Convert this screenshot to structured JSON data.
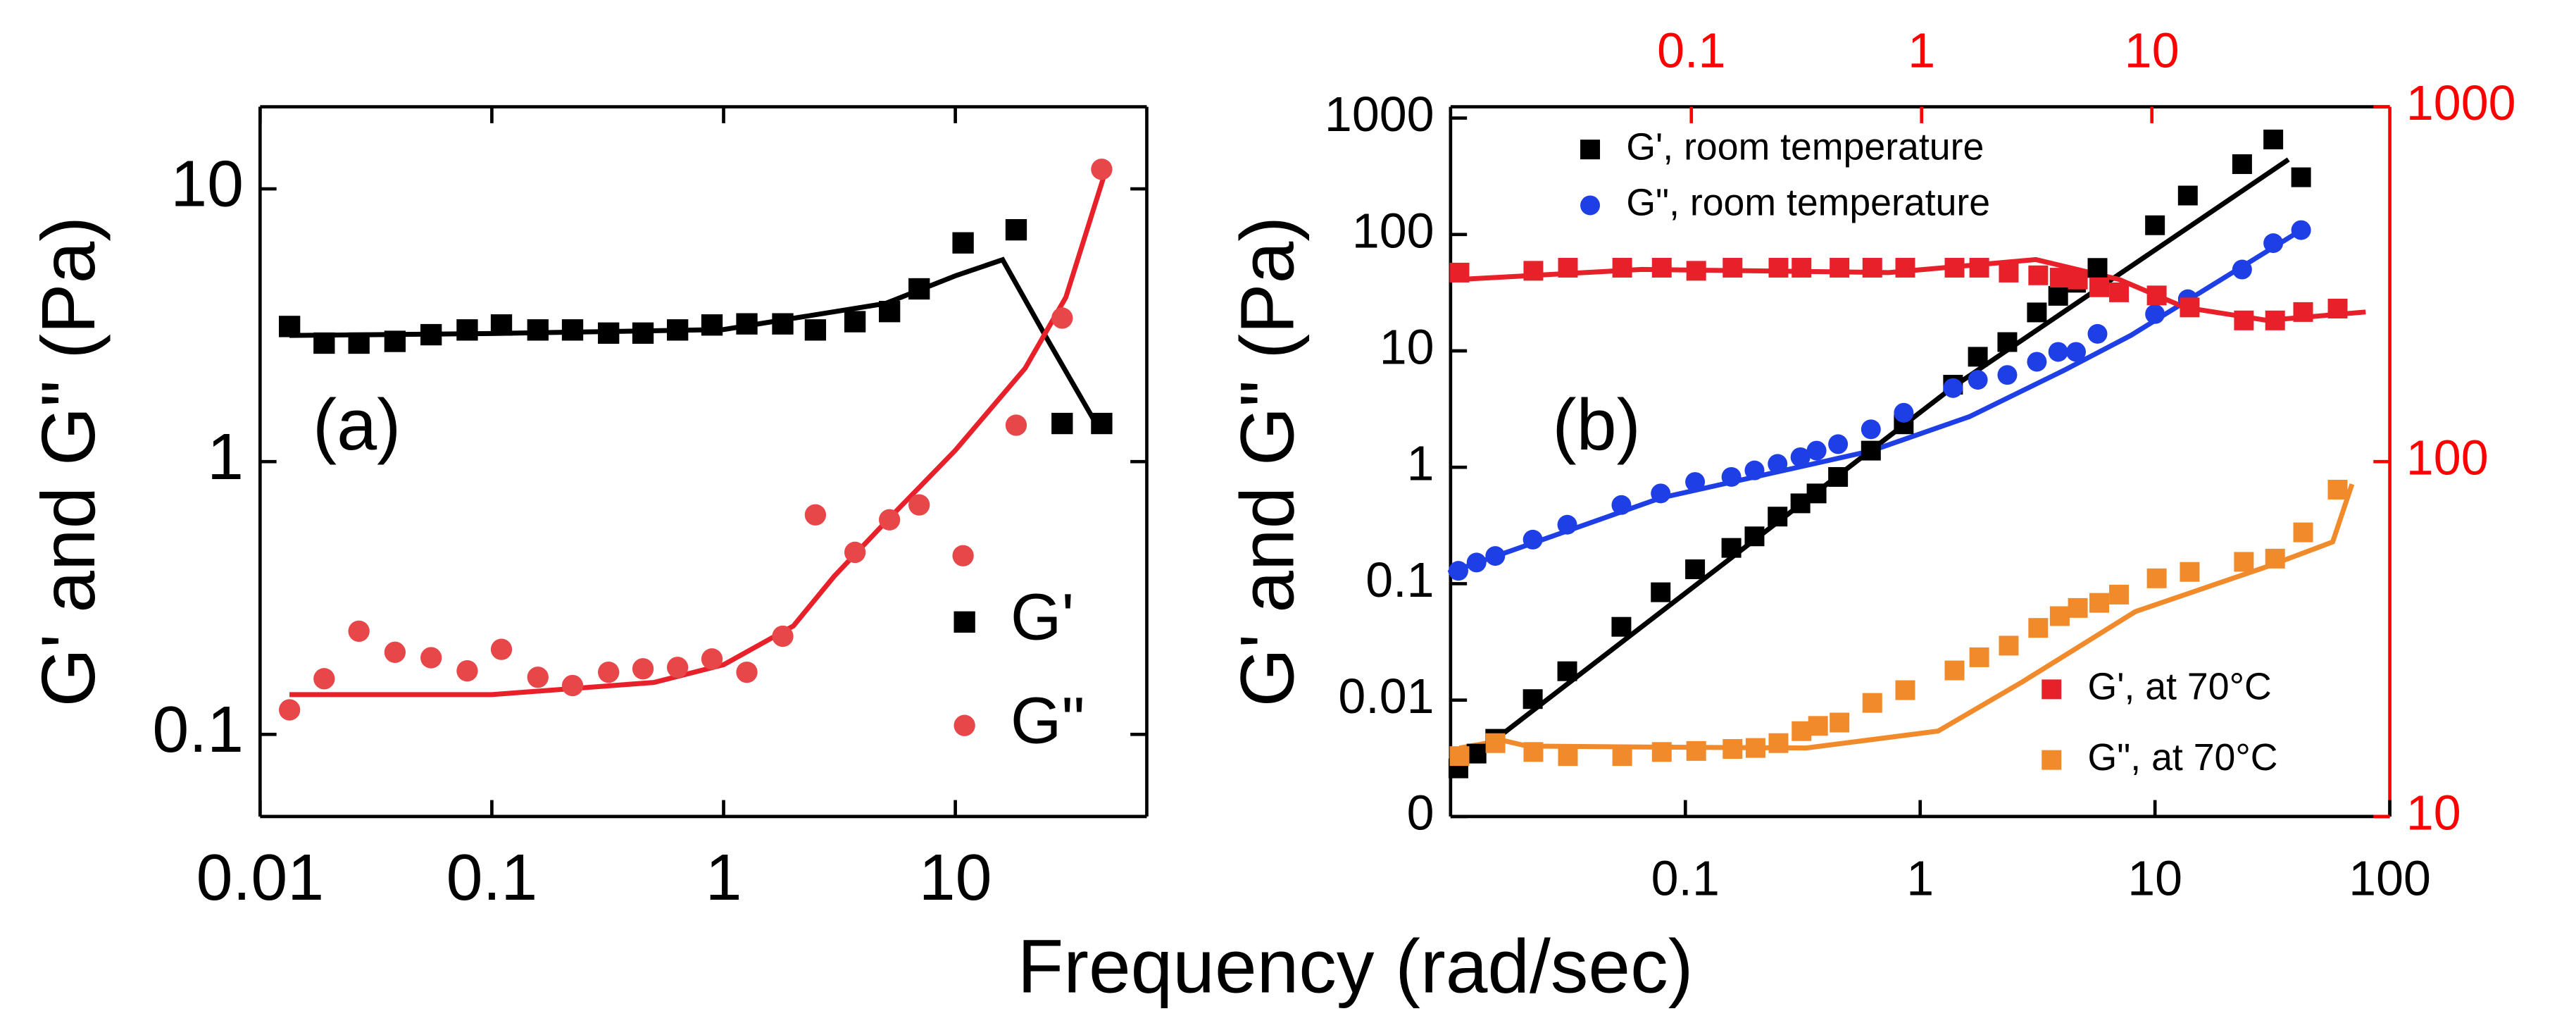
{
  "chart_data": [
    {
      "type": "scatter",
      "log_x": true,
      "log_y": true,
      "xlim": [
        0.01,
        67
      ],
      "xticks": [
        0.01,
        0.1,
        1,
        10
      ],
      "ylim": [
        0.05,
        20
      ],
      "yticks": [
        0.1,
        1,
        10
      ],
      "ylabel": "G' and G\" (Pa)",
      "xlabel": "Frequency (rad/sec)",
      "annotation": "(a)",
      "legend": "lower right",
      "x": [
        0.0134,
        0.0189,
        0.0267,
        0.0382,
        0.0547,
        0.0783,
        0.11,
        0.158,
        0.223,
        0.319,
        0.449,
        0.633,
        0.891,
        1.26,
        1.8,
        2.49,
        3.69,
        5.2,
        6.98,
        10.8,
        18.3,
        28.9,
        42.8
      ],
      "series": [
        {
          "name": "G'",
          "color": "#000000",
          "marker": "square",
          "values": [
            3.13,
            2.72,
            2.72,
            2.76,
            2.92,
            3.04,
            3.17,
            3.04,
            3.04,
            2.96,
            2.96,
            3.04,
            3.17,
            3.2,
            3.2,
            3.04,
            3.26,
            3.55,
            4.3,
            6.34,
            7.08,
            1.38,
            1.38
          ]
        },
        {
          "name": "G\"",
          "color": "#e8474a",
          "marker": "circle",
          "values": [
            0.123,
            0.16,
            0.239,
            0.2,
            0.191,
            0.171,
            0.205,
            0.162,
            0.151,
            0.169,
            0.174,
            0.176,
            0.189,
            0.169,
            0.229,
            0.638,
            0.465,
            0.612,
            0.694,
            0.452,
            1.36,
            3.36,
            11.8
          ]
        }
      ],
      "fits": [
        {
          "color": "#000000",
          "x": [
            0.0134,
            0.1,
            1,
            5,
            10,
            16,
            25,
            40
          ],
          "values": [
            2.9,
            2.95,
            3.05,
            3.8,
            4.8,
            5.5,
            2.8,
            1.4
          ]
        },
        {
          "color": "#e8202a",
          "x": [
            0.0134,
            0.1,
            0.5,
            1,
            2,
            3,
            5,
            10,
            20,
            30,
            45
          ],
          "values": [
            0.14,
            0.14,
            0.155,
            0.18,
            0.25,
            0.38,
            0.6,
            1.1,
            2.2,
            4,
            12
          ]
        }
      ]
    },
    {
      "type": "scatter",
      "log_x": true,
      "log_y": true,
      "xlim": [
        0.01,
        100
      ],
      "xticks": [
        0.1,
        1,
        10,
        100
      ],
      "ylim": [
        0.001,
        1250
      ],
      "yticks": [
        {
          "value": 0.001,
          "label": "0"
        },
        0.01,
        0.1,
        1,
        10,
        100,
        1000
      ],
      "x2lim": [
        0.009,
        108
      ],
      "x2ticks": [
        0.1,
        1,
        10
      ],
      "y2lim": [
        10,
        1000
      ],
      "y2ticks": [
        10,
        100,
        1000
      ],
      "axis2_color": "#ff0000",
      "ylabel": "G' and G\" (Pa)",
      "annotation": "(b)",
      "legend": "upper left",
      "legend2": "lower right",
      "series": [
        {
          "name": "G', room temperature",
          "color": "#000000",
          "marker": "square",
          "x": [
            0.0108,
            0.0129,
            0.0155,
            0.0224,
            0.0314,
            0.0534,
            0.0785,
            0.11,
            0.157,
            0.197,
            0.247,
            0.309,
            0.362,
            0.447,
            0.617,
            0.851,
            1.38,
            1.76,
            2.35,
            3.14,
            3.87,
            4.61,
            5.69,
            10,
            13.8,
            23.5,
            31.9,
            41.9
          ],
          "values": [
            0.00259,
            0.00347,
            0.00465,
            0.0102,
            0.0177,
            0.0426,
            0.0844,
            0.133,
            0.203,
            0.255,
            0.377,
            0.49,
            0.596,
            0.826,
            1.39,
            2.34,
            5.12,
            8.9,
            11.9,
            21.4,
            29.7,
            38.5,
            51.6,
            120,
            216,
            402,
            655,
            310
          ]
        },
        {
          "name": "G\", room temperature",
          "color": "#1f3fe6",
          "marker": "circle",
          "x": [
            0.0108,
            0.0129,
            0.0155,
            0.0224,
            0.0314,
            0.0534,
            0.0785,
            0.11,
            0.157,
            0.197,
            0.247,
            0.309,
            0.362,
            0.447,
            0.617,
            0.851,
            1.38,
            1.76,
            2.35,
            3.14,
            3.87,
            4.61,
            5.69,
            10,
            13.8,
            23.5,
            31.9,
            41.9
          ],
          "values": [
            0.129,
            0.152,
            0.173,
            0.239,
            0.321,
            0.474,
            0.596,
            0.748,
            0.826,
            0.94,
            1.07,
            1.22,
            1.39,
            1.58,
            2.12,
            2.94,
            4.79,
            5.64,
            6.21,
            8.06,
            9.8,
            9.8,
            14.0,
            20.7,
            27.8,
            50.0,
            84.2,
            109
          ]
        },
        {
          "name": "G', at 70°C",
          "color": "#e8202a",
          "marker": "square",
          "axis": "y2",
          "x": [
            0.00984,
            0.0206,
            0.0291,
            0.0501,
            0.0744,
            0.105,
            0.151,
            0.239,
            0.301,
            0.44,
            0.611,
            0.849,
            1.39,
            1.78,
            2.39,
            3.21,
            3.98,
            4.77,
            5.91,
            7.2,
            10.5,
            14.6,
            25.1,
            34.3,
            45.4,
            64.1
          ],
          "values": [
            341,
            345,
            352,
            352,
            352,
            345,
            352,
            352,
            352,
            352,
            352,
            352,
            352,
            352,
            341,
            335,
            330,
            326,
            310,
            300,
            294,
            272,
            250,
            250,
            264,
            270
          ]
        },
        {
          "name": "G\", at 70°C",
          "color": "#f08a2a",
          "marker": "square",
          "axis": "y2",
          "x": [
            0.00984,
            0.0141,
            0.0206,
            0.0291,
            0.0501,
            0.0744,
            0.105,
            0.151,
            0.19,
            0.239,
            0.301,
            0.355,
            0.44,
            0.611,
            0.849,
            1.39,
            1.78,
            2.39,
            3.21,
            3.98,
            4.77,
            5.91,
            7.2,
            10.5,
            14.6,
            25.1,
            34.3,
            45.4,
            64.1
          ],
          "values": [
            14.8,
            16.1,
            15.2,
            14.8,
            14.8,
            15.2,
            15.3,
            15.5,
            15.6,
            16.1,
            17.4,
            18.0,
            18.4,
            20.9,
            22.7,
            25.8,
            28.1,
            30.3,
            34.0,
            36.7,
            38.7,
            40.0,
            42.2,
            46.9,
            48.9,
            52.2,
            53.3,
            63.2,
            83.4
          ]
        }
      ],
      "fits": [
        {
          "color": "#000000",
          "x": [
            0.0105,
            1.4,
            37
          ],
          "values": [
            0.0025,
            5,
            440
          ]
        },
        {
          "color": "#1f3fe6",
          "x": [
            0.0098,
            0.0785,
            0.617,
            1.62,
            4.1,
            7.9,
            41.9
          ],
          "values": [
            0.124,
            0.546,
            1.38,
            2.72,
            6.8,
            13.6,
            109
          ]
        },
        {
          "color": "#e8202a",
          "axis": "y2",
          "x": [
            0.00984,
            0.061,
            0.72,
            3.14,
            7.2,
            13.9,
            31.6,
            84.9
          ],
          "values": [
            326,
            348,
            341,
            371,
            326,
            272,
            250,
            264
          ]
        },
        {
          "color": "#f08a2a",
          "axis": "y2",
          "x": [
            0.00984,
            0.0151,
            0.0193,
            0.061,
            0.316,
            1.18,
            2.72,
            8.48,
            31.6,
            61.0,
            74
          ],
          "values": [
            15.6,
            16.4,
            15.8,
            15.7,
            15.6,
            17.4,
            23.9,
            37.8,
            50.6,
            59.4,
            86.4
          ]
        }
      ]
    }
  ]
}
